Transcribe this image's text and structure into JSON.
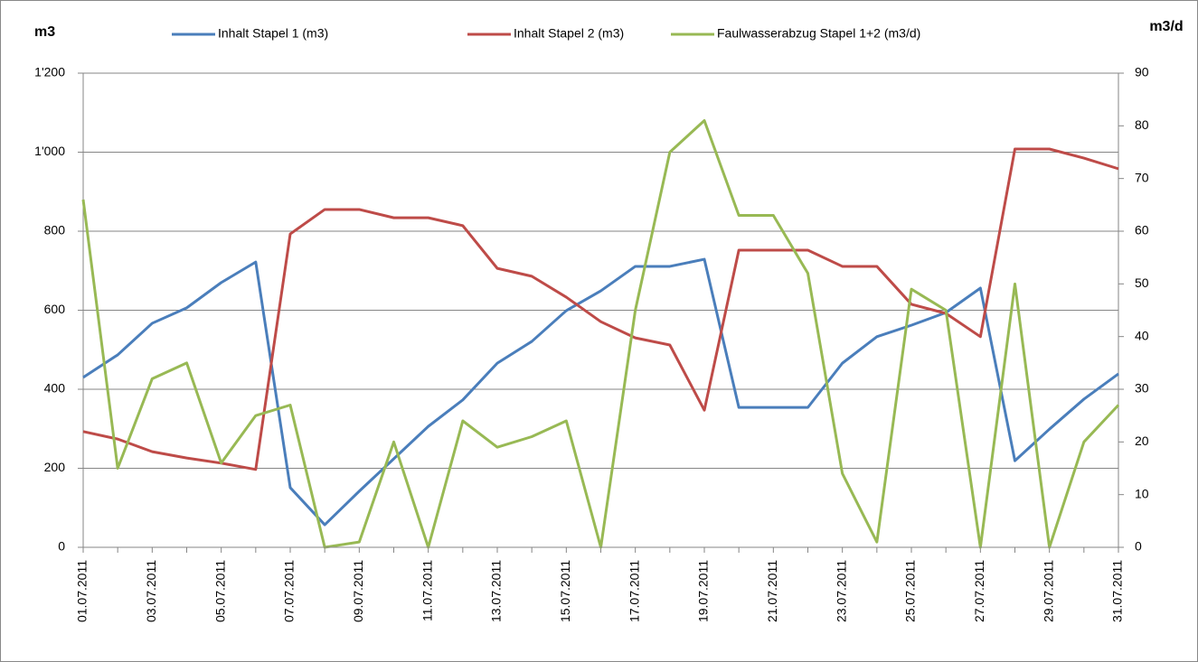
{
  "chart_data": {
    "type": "line",
    "y_label": "m3",
    "y2_label": "m3/d",
    "categories": [
      "01.07.2011",
      null,
      "03.07.2011",
      null,
      "05.07.2011",
      null,
      "07.07.2011",
      null,
      "09.07.2011",
      null,
      "11.07.2011",
      null,
      "13.07.2011",
      null,
      "15.07.2011",
      null,
      "17.07.2011",
      null,
      "19.07.2011",
      null,
      "21.07.2011",
      null,
      "23.07.2011",
      null,
      "25.07.2011",
      null,
      "27.07.2011",
      null,
      "29.07.2011",
      null,
      "31.07.2011"
    ],
    "series": [
      {
        "name": "Inhalt Stapel 1 (m3)",
        "color": "#4a7ebb",
        "values": [
          430,
          487,
          567,
          606,
          670,
          722,
          151,
          57,
          142,
          224,
          306,
          373,
          466,
          521,
          599,
          649,
          711,
          711,
          729,
          354,
          354,
          354,
          466,
          533,
          562,
          594,
          656,
          219,
          299,
          375,
          439
        ]
      },
      {
        "name": "Inhalt Stapel 2 (m3)",
        "color": "#be4b48",
        "values": [
          293,
          274,
          242,
          226,
          213,
          197,
          793,
          855,
          855,
          834,
          834,
          814,
          706,
          686,
          633,
          571,
          530,
          512,
          347,
          752,
          752,
          752,
          711,
          711,
          615,
          592,
          533,
          1008,
          1008,
          985,
          958
        ]
      },
      {
        "name": "Faulwasserabzug Stapel 1+2 (m3/d)",
        "color": "#98b954",
        "axis": "y2",
        "values": [
          66,
          15,
          32,
          35,
          16,
          25,
          27,
          0,
          1,
          20,
          0,
          24,
          19,
          21,
          24,
          0,
          45,
          75,
          81,
          63,
          63,
          52,
          14,
          1,
          49,
          45,
          0,
          50,
          0,
          20,
          27
        ]
      }
    ],
    "ylim": [
      0,
      1200
    ],
    "yticks": [
      0,
      200,
      400,
      600,
      800,
      {
        "value": 1000,
        "label": "1'000"
      },
      {
        "value": 1200,
        "label": "1'200"
      }
    ],
    "y2lim": [
      0,
      90
    ],
    "y2ticks": [
      0,
      10,
      20,
      30,
      40,
      50,
      60,
      70,
      80,
      90
    ],
    "grid": true,
    "legend": "top"
  }
}
